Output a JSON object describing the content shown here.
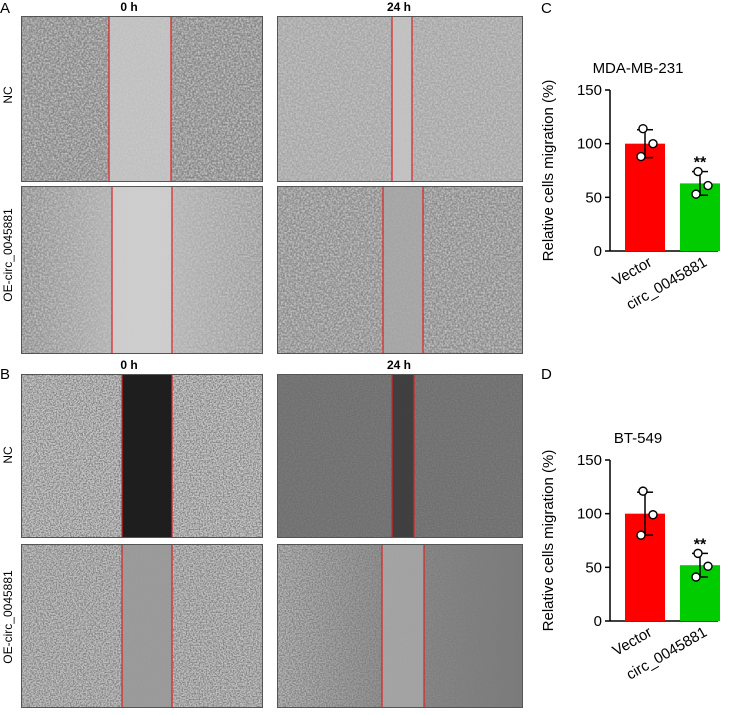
{
  "panel_letters": {
    "a": "A",
    "b": "B",
    "c": "C",
    "d": "D"
  },
  "micrographs": {
    "a": {
      "col_labels": [
        "0 h",
        "24 h"
      ],
      "row_labels": [
        "NC",
        "OE-circ_0045881"
      ]
    },
    "b": {
      "col_labels": [
        "0 h",
        "24 h"
      ],
      "row_labels": [
        "NC",
        "OE-circ_0045881"
      ]
    }
  },
  "colors": {
    "vector": "#ff0000",
    "circ": "#00cc00",
    "wound_line": "#e02020"
  },
  "chart_data": [
    {
      "type": "bar",
      "title": "MDA-MB-231",
      "ylabel": "Relative cells migration (%)",
      "xlabel": "",
      "categories": [
        "Vector",
        "circ_0045881"
      ],
      "values": [
        100,
        63
      ],
      "errors": [
        13,
        11
      ],
      "points": [
        [
          114,
          100,
          88
        ],
        [
          74,
          61,
          53
        ]
      ],
      "significance": [
        "",
        "**"
      ],
      "ylim": [
        0,
        150
      ],
      "yticks": [
        "0",
        "50",
        "100",
        "150"
      ],
      "legend": "none",
      "grid": false
    },
    {
      "type": "bar",
      "title": "BT-549",
      "ylabel": "Relative cells migration (%)",
      "xlabel": "",
      "categories": [
        "Vector",
        "circ_0045881"
      ],
      "values": [
        100,
        52
      ],
      "errors": [
        20,
        11
      ],
      "points": [
        [
          121,
          99,
          80
        ],
        [
          63,
          51,
          41
        ]
      ],
      "significance": [
        "",
        "**"
      ],
      "ylim": [
        0,
        150
      ],
      "yticks": [
        "0",
        "50",
        "100",
        "150"
      ],
      "legend": "none",
      "grid": false
    }
  ]
}
